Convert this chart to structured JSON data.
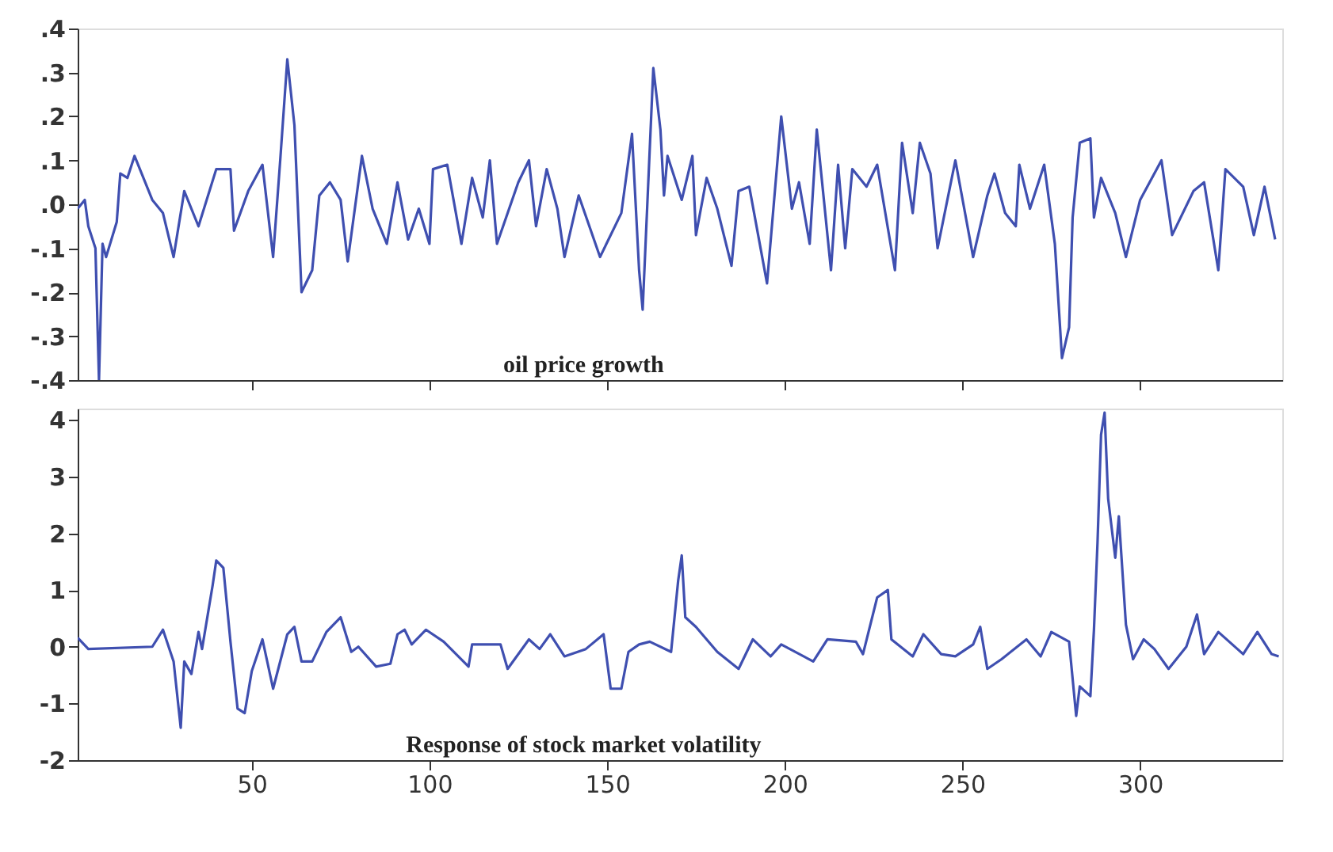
{
  "chart_data": [
    {
      "type": "line",
      "annotations": [
        "oil price growth"
      ],
      "grid": false,
      "tick_labels": "y",
      "line_style": "solid",
      "marker": "none",
      "xlim": [
        1,
        340
      ],
      "ylim": [
        -0.4,
        0.4
      ],
      "yticks": [
        {
          "value": -0.4,
          "label": "-.4"
        },
        {
          "value": -0.3,
          "label": "-.3"
        },
        {
          "value": -0.2,
          "label": "-.2"
        },
        {
          "value": -0.1,
          "label": "-.1"
        },
        {
          "value": 0,
          "label": ".0"
        },
        {
          "value": 0.1,
          "label": ".1"
        },
        {
          "value": 0.2,
          "label": ".2"
        },
        {
          "value": 0.3,
          "label": ".3"
        },
        {
          "value": 0.4,
          "label": ".4"
        }
      ],
      "xticks": [
        {
          "value": 50,
          "label": null
        },
        {
          "value": 100,
          "label": null
        },
        {
          "value": 150,
          "label": null
        },
        {
          "value": 200,
          "label": null
        },
        {
          "value": 250,
          "label": null
        },
        {
          "value": 300,
          "label": null
        }
      ],
      "series": [
        {
          "color": "#3f4fb0",
          "x": [
            1,
            3,
            4,
            6,
            7,
            8,
            9,
            12,
            13,
            15,
            17,
            22,
            25,
            28,
            31,
            35,
            40,
            44,
            45,
            49,
            53,
            56,
            58,
            60,
            62,
            64,
            67,
            69,
            72,
            75,
            77,
            81,
            84,
            88,
            91,
            94,
            97,
            100,
            101,
            105,
            109,
            112,
            115,
            117,
            119,
            125,
            128,
            130,
            133,
            136,
            138,
            142,
            148,
            154,
            157,
            159,
            160,
            163,
            165,
            166,
            167,
            171,
            174,
            175,
            178,
            181,
            185,
            187,
            190,
            195,
            199,
            202,
            204,
            207,
            209,
            213,
            215,
            217,
            219,
            223,
            226,
            231,
            233,
            236,
            238,
            241,
            243,
            248,
            253,
            257,
            259,
            262,
            265,
            266,
            269,
            273,
            276,
            278,
            280,
            281,
            283,
            286,
            287,
            289,
            293,
            296,
            300,
            306,
            309,
            315,
            318,
            322,
            324,
            329,
            332,
            335,
            338
          ],
          "values": [
            -0.01,
            0.01,
            -0.05,
            -0.1,
            -0.4,
            -0.09,
            -0.12,
            -0.04,
            0.07,
            0.06,
            0.11,
            0.01,
            -0.02,
            -0.12,
            0.03,
            -0.05,
            0.08,
            0.08,
            -0.06,
            0.03,
            0.09,
            -0.12,
            0.1,
            0.33,
            0.18,
            -0.2,
            -0.15,
            0.02,
            0.05,
            0.01,
            -0.13,
            0.11,
            -0.01,
            -0.09,
            0.05,
            -0.08,
            -0.01,
            -0.09,
            0.08,
            0.09,
            -0.09,
            0.06,
            -0.03,
            0.1,
            -0.09,
            0.05,
            0.1,
            -0.05,
            0.08,
            -0.01,
            -0.12,
            0.02,
            -0.12,
            -0.02,
            0.16,
            -0.15,
            -0.24,
            0.31,
            0.17,
            0.02,
            0.11,
            0.01,
            0.11,
            -0.07,
            0.06,
            -0.01,
            -0.14,
            0.03,
            0.04,
            -0.18,
            0.2,
            -0.01,
            0.05,
            -0.09,
            0.17,
            -0.15,
            0.09,
            -0.1,
            0.08,
            0.04,
            0.09,
            -0.15,
            0.14,
            -0.02,
            0.14,
            0.07,
            -0.1,
            0.1,
            -0.12,
            0.02,
            0.07,
            -0.02,
            -0.05,
            0.09,
            -0.01,
            0.09,
            -0.09,
            -0.35,
            -0.28,
            -0.03,
            0.14,
            0.15,
            -0.03,
            0.06,
            -0.02,
            -0.12,
            0.01,
            0.1,
            -0.07,
            0.03,
            0.05,
            -0.15,
            0.08,
            0.04,
            -0.07,
            0.04,
            -0.08
          ]
        }
      ]
    },
    {
      "type": "line",
      "annotations": [
        "Response of stock market volatility"
      ],
      "grid": false,
      "line_style": "solid",
      "marker": "none",
      "xlim": [
        1,
        340
      ],
      "ylim": [
        -2,
        4.2
      ],
      "yticks": [
        -2,
        -1,
        0,
        1,
        2,
        3,
        4
      ],
      "xticks": [
        50,
        100,
        150,
        200,
        250,
        300
      ],
      "series": [
        {
          "color": "#3f4fb0",
          "x": [
            1,
            4,
            22,
            25,
            28,
            30,
            31,
            33,
            35,
            36,
            39,
            40,
            42,
            44,
            46,
            48,
            50,
            53,
            56,
            60,
            62,
            64,
            67,
            71,
            75,
            78,
            80,
            85,
            89,
            91,
            93,
            95,
            99,
            104,
            111,
            112,
            120,
            122,
            128,
            131,
            134,
            138,
            144,
            149,
            151,
            154,
            156,
            159,
            162,
            168,
            170,
            171,
            172,
            175,
            181,
            187,
            191,
            196,
            199,
            208,
            212,
            220,
            222,
            226,
            229,
            230,
            236,
            239,
            244,
            248,
            253,
            255,
            257,
            261,
            268,
            272,
            275,
            280,
            282,
            283,
            286,
            287,
            288,
            289,
            290,
            291,
            293,
            294,
            296,
            298,
            301,
            304,
            308,
            313,
            316,
            318,
            322,
            329,
            333,
            337,
            339
          ],
          "values": [
            0.16,
            -0.04,
            0,
            0.3,
            -0.26,
            -1.43,
            -0.26,
            -0.48,
            0.26,
            -0.04,
            1.09,
            1.52,
            1.39,
            0.09,
            -1.09,
            -1.17,
            -0.43,
            0.13,
            -0.74,
            0.22,
            0.35,
            -0.26,
            -0.26,
            0.26,
            0.52,
            -0.09,
            0,
            -0.35,
            -0.3,
            0.22,
            0.3,
            0.04,
            0.3,
            0.09,
            -0.35,
            0.04,
            0.04,
            -0.39,
            0.13,
            -0.04,
            0.22,
            -0.17,
            -0.04,
            0.22,
            -0.74,
            -0.74,
            -0.09,
            0.04,
            0.09,
            -0.09,
            1.17,
            1.61,
            0.52,
            0.35,
            -0.09,
            -0.39,
            0.13,
            -0.17,
            0.04,
            -0.26,
            0.13,
            0.09,
            -0.13,
            0.87,
            1.0,
            0.13,
            -0.17,
            0.22,
            -0.13,
            -0.17,
            0.04,
            0.35,
            -0.39,
            -0.22,
            0.13,
            -0.17,
            0.26,
            0.09,
            -1.22,
            -0.7,
            -0.87,
            0.3,
            1.83,
            3.74,
            4.13,
            2.61,
            1.57,
            2.3,
            0.39,
            -0.22,
            0.13,
            -0.04,
            -0.39,
            0,
            0.57,
            -0.13,
            0.26,
            -0.13,
            0.26,
            -0.13,
            -0.17
          ]
        }
      ]
    }
  ]
}
